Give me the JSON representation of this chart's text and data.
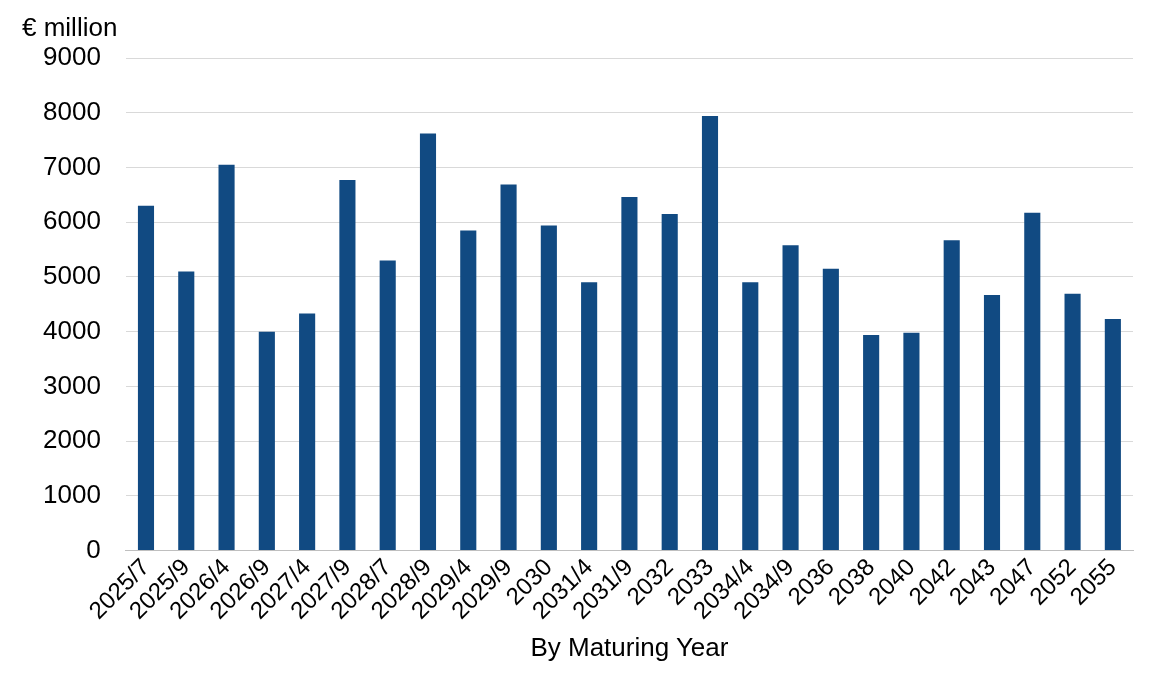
{
  "chart_data": {
    "type": "bar",
    "ylabel": "€ million",
    "xlabel": "By Maturing Year",
    "categories": [
      "2025/7",
      "2025/9",
      "2026/4",
      "2026/9",
      "2027/4",
      "2027/9",
      "2028/7",
      "2028/9",
      "2029/4",
      "2029/9",
      "2030",
      "2031/4",
      "2031/9",
      "2032",
      "2033",
      "2034/4",
      "2034/9",
      "2036",
      "2038",
      "2040",
      "2042",
      "2043",
      "2047",
      "2052",
      "2055"
    ],
    "values": [
      6300,
      5100,
      7050,
      4000,
      4330,
      6770,
      5300,
      7620,
      5850,
      6690,
      5940,
      4900,
      6460,
      6150,
      7940,
      4900,
      5580,
      5150,
      3940,
      3980,
      5670,
      4670,
      6170,
      4690,
      4230
    ],
    "color": "#114a82",
    "ylim": [
      0,
      9000
    ],
    "yticks": [
      0,
      1000,
      2000,
      3000,
      4000,
      5000,
      6000,
      7000,
      8000,
      9000
    ],
    "grid": "y",
    "legend": false
  }
}
